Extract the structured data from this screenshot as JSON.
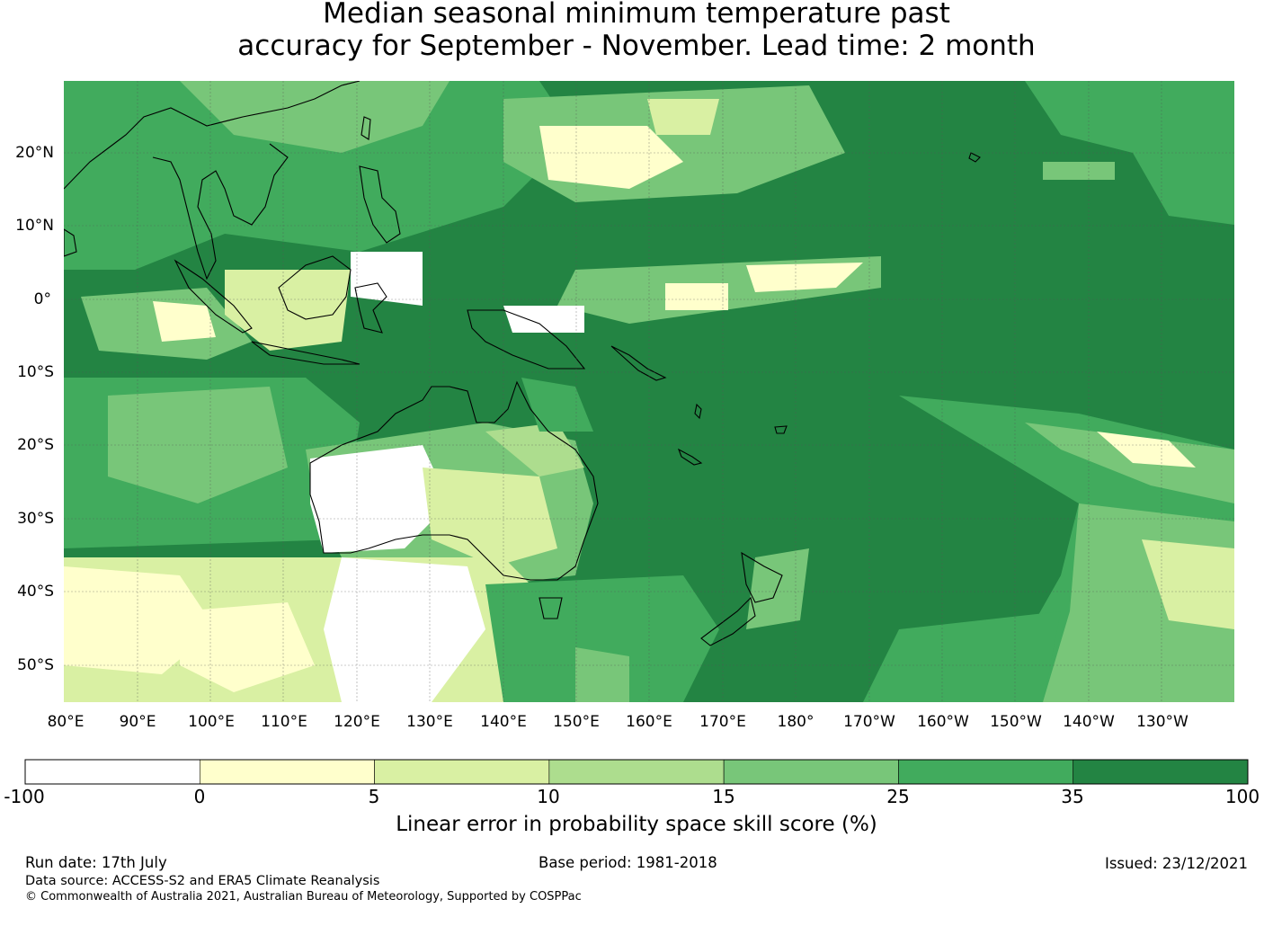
{
  "title": {
    "line1": "Median seasonal minimum temperature past",
    "line2": "accuracy for September - November. Lead time: 2 month"
  },
  "map": {
    "lon_range": [
      80,
      240
    ],
    "lat_range": [
      -55,
      30
    ],
    "lat_ticks": [
      "20°N",
      "10°N",
      "0°",
      "10°S",
      "20°S",
      "30°S",
      "40°S",
      "50°S"
    ],
    "lon_ticks": [
      "80°E",
      "90°E",
      "100°E",
      "110°E",
      "120°E",
      "130°E",
      "140°E",
      "150°E",
      "160°E",
      "170°E",
      "180°",
      "170°W",
      "160°W",
      "150°W",
      "140°W",
      "130°W"
    ],
    "grid": true
  },
  "colorbar": {
    "label": "Linear error in probability space skill score (%)",
    "ticks": [
      "-100",
      "0",
      "5",
      "10",
      "15",
      "25",
      "35",
      "100"
    ],
    "colors": [
      "#ffffff",
      "#ffffcc",
      "#d9f0a3",
      "#addd8e",
      "#78c679",
      "#41ab5d",
      "#238443"
    ]
  },
  "footer": {
    "run_date": "Run date: 17th July",
    "base_period": "Base period: 1981-2018",
    "issued": "Issued: 23/12/2021",
    "data_source": "Data source: ACCESS-S2 and ERA5 Climate Reanalysis",
    "copyright": "© Commonwealth of Australia 2021, Australian Bureau of Meteorology, Supported by COSPPac"
  }
}
